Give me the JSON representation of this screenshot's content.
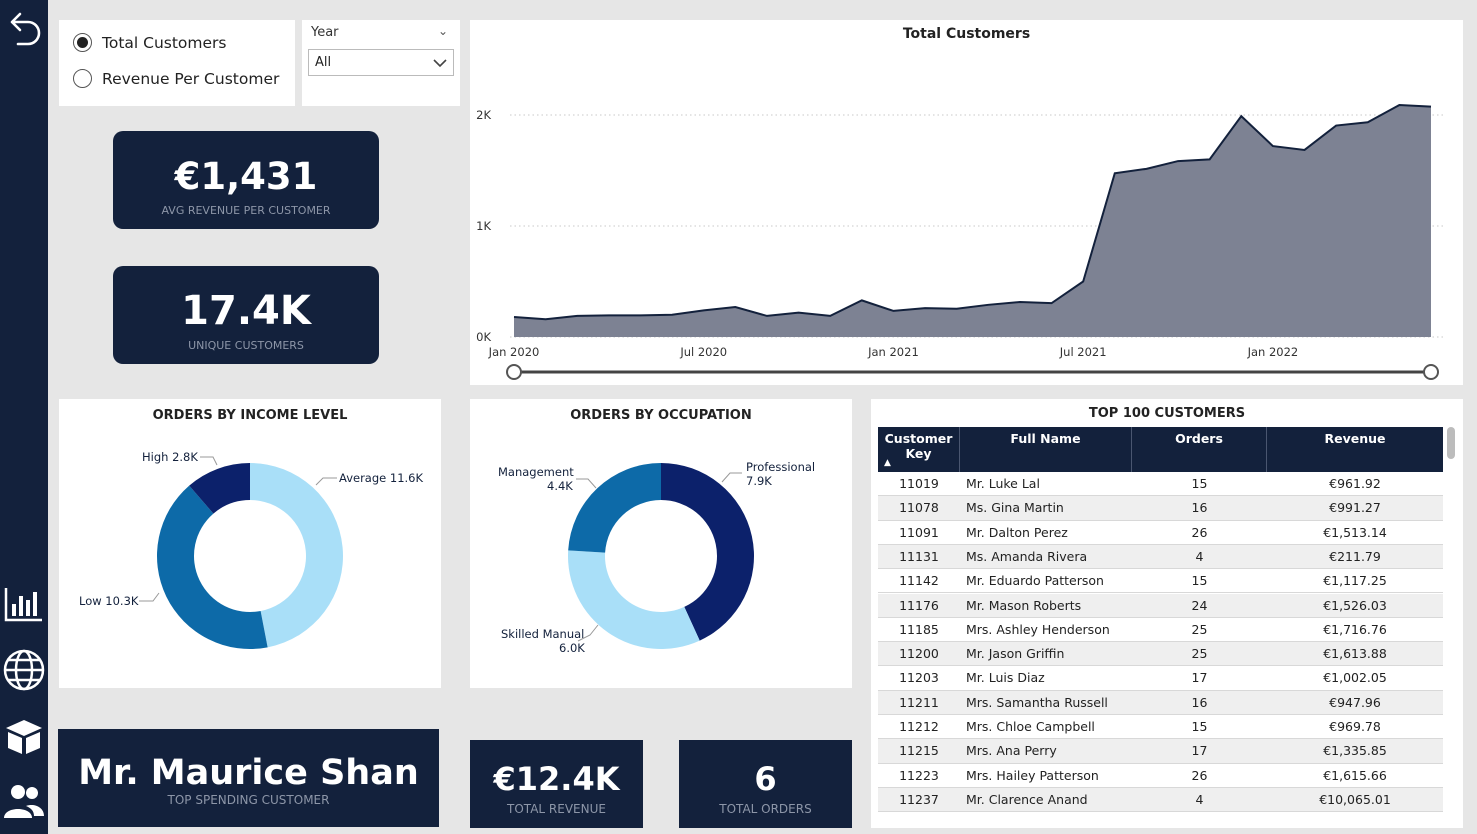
{
  "filters": {
    "radio_options": [
      {
        "label": "Total Customers",
        "selected": true
      },
      {
        "label": "Revenue Per Customer",
        "selected": false
      }
    ],
    "year_slicer": {
      "title": "Year",
      "selected": "All"
    }
  },
  "kpis": {
    "avg_revenue": {
      "value": "€1,431",
      "label": "AVG REVENUE PER CUSTOMER"
    },
    "unique_customers": {
      "value": "17.4K",
      "label": "UNIQUE CUSTOMERS"
    },
    "top_customer": {
      "value": "Mr. Maurice Shan",
      "label": "TOP SPENDING CUSTOMER"
    },
    "total_revenue": {
      "value": "€12.4K",
      "label": "TOTAL REVENUE"
    },
    "total_orders": {
      "value": "6",
      "label": "TOTAL ORDERS"
    }
  },
  "colors": {
    "navy": "#13213c",
    "area_fill": "#7d8293",
    "donut_light": "#a9dff8",
    "donut_mid": "#0d6aa8",
    "donut_dark": "#0c216b"
  },
  "chart_data": [
    {
      "type": "area",
      "title": "Total Customers",
      "x_tick_labels": [
        "Jan 2020",
        "Jul 2020",
        "Jan 2021",
        "Jul 2021",
        "Jan 2022"
      ],
      "y_tick_labels": [
        "0K",
        "1K",
        "2K"
      ],
      "ylim": [
        0,
        2000
      ],
      "grid": true,
      "x": [
        "2020-01",
        "2020-02",
        "2020-03",
        "2020-04",
        "2020-05",
        "2020-06",
        "2020-07",
        "2020-08",
        "2020-09",
        "2020-10",
        "2020-11",
        "2020-12",
        "2021-01",
        "2021-02",
        "2021-03",
        "2021-04",
        "2021-05",
        "2021-06",
        "2021-07",
        "2021-08",
        "2021-09",
        "2021-10",
        "2021-11",
        "2021-12",
        "2022-01",
        "2022-02",
        "2022-03",
        "2022-04",
        "2022-05",
        "2022-06"
      ],
      "values": [
        180,
        160,
        190,
        195,
        195,
        200,
        240,
        270,
        190,
        220,
        190,
        330,
        235,
        260,
        255,
        290,
        315,
        305,
        500,
        1475,
        1515,
        1585,
        1600,
        1990,
        1720,
        1685,
        1905,
        1935,
        2090,
        2075
      ]
    },
    {
      "type": "pie",
      "title": "ORDERS BY INCOME LEVEL",
      "series": [
        {
          "name": "Average",
          "value": 11.6,
          "label": "Average 11.6K"
        },
        {
          "name": "Low",
          "value": 10.3,
          "label": "Low 10.3K"
        },
        {
          "name": "High",
          "value": 2.8,
          "label": "High 2.8K"
        }
      ]
    },
    {
      "type": "pie",
      "title": "ORDERS BY OCCUPATION",
      "series": [
        {
          "name": "Professional",
          "value": 7.9,
          "label": "7.9K"
        },
        {
          "name": "Skilled Manual",
          "value": 6.0,
          "label": "6.0K"
        },
        {
          "name": "Management",
          "value": 4.4,
          "label": "4.4K"
        }
      ]
    }
  ],
  "table": {
    "title": "TOP 100 CUSTOMERS",
    "columns": [
      "Customer Key",
      "Full Name",
      "Orders",
      "Revenue"
    ],
    "rows": [
      [
        "11019",
        "Mr. Luke Lal",
        "15",
        "€961.92"
      ],
      [
        "11078",
        "Ms. Gina Martin",
        "16",
        "€991.27"
      ],
      [
        "11091",
        "Mr. Dalton Perez",
        "26",
        "€1,513.14"
      ],
      [
        "11131",
        "Ms. Amanda Rivera",
        "4",
        "€211.79"
      ],
      [
        "11142",
        "Mr. Eduardo Patterson",
        "15",
        "€1,117.25"
      ],
      [
        "11176",
        "Mr. Mason Roberts",
        "24",
        "€1,526.03"
      ],
      [
        "11185",
        "Mrs. Ashley Henderson",
        "25",
        "€1,716.76"
      ],
      [
        "11200",
        "Mr. Jason Griffin",
        "25",
        "€1,613.88"
      ],
      [
        "11203",
        "Mr. Luis Diaz",
        "17",
        "€1,002.05"
      ],
      [
        "11211",
        "Mrs. Samantha Russell",
        "16",
        "€947.96"
      ],
      [
        "11212",
        "Mrs. Chloe Campbell",
        "15",
        "€969.78"
      ],
      [
        "11215",
        "Mrs. Ana Perry",
        "17",
        "€1,335.85"
      ],
      [
        "11223",
        "Mrs. Hailey Patterson",
        "26",
        "€1,615.66"
      ],
      [
        "11237",
        "Mr. Clarence Anand",
        "4",
        "€10,065.01"
      ]
    ]
  }
}
